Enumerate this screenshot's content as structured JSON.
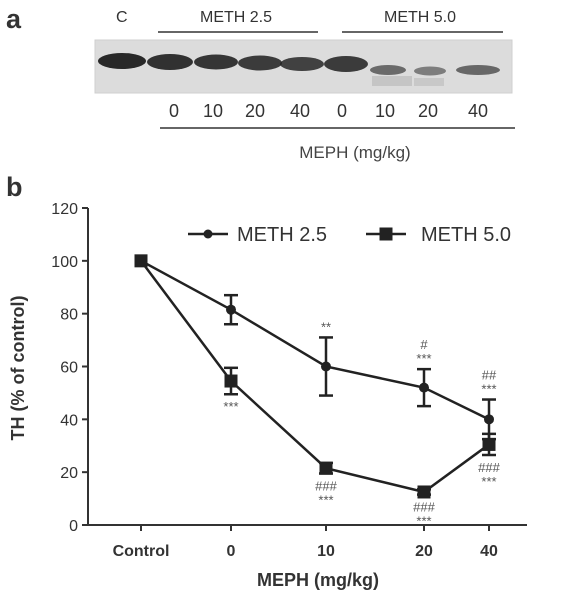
{
  "blot": {
    "panel_label": "a",
    "control_label": "C",
    "group_labels": [
      "METH 2.5",
      "METH 5.0"
    ],
    "dose_labels": [
      "0",
      "10",
      "20",
      "40",
      "0",
      "10",
      "20",
      "40"
    ],
    "dose_unit_label": "MEPH (mg/kg)"
  },
  "chart_data": {
    "type": "line",
    "panel_label": "b",
    "categories": [
      "Control",
      "0",
      "10",
      "20",
      "40"
    ],
    "xlabel": "MEPH (mg/kg)",
    "ylabel": "TH (% of control)",
    "ylim": [
      0,
      120
    ],
    "yticks": [
      0,
      20,
      40,
      60,
      80,
      100,
      120
    ],
    "grid": false,
    "legend_position": "top-right",
    "series": [
      {
        "name": "METH 2.5",
        "marker": "circle",
        "color": "#222222",
        "values": [
          100,
          81.5,
          60,
          52,
          40
        ],
        "errors": [
          0,
          5.5,
          11,
          7,
          7.5
        ]
      },
      {
        "name": "METH 5.0",
        "marker": "square",
        "color": "#222222",
        "values": [
          100,
          54.5,
          21.5,
          12.5,
          30.5
        ],
        "errors": [
          0,
          5,
          2,
          1,
          4
        ]
      }
    ],
    "annotations": {
      "series1": [
        "",
        "",
        "**",
        "#\n***",
        "##\n***"
      ],
      "series2": [
        "",
        "***",
        "###\n***",
        "###\n***",
        "###\n***"
      ]
    }
  }
}
